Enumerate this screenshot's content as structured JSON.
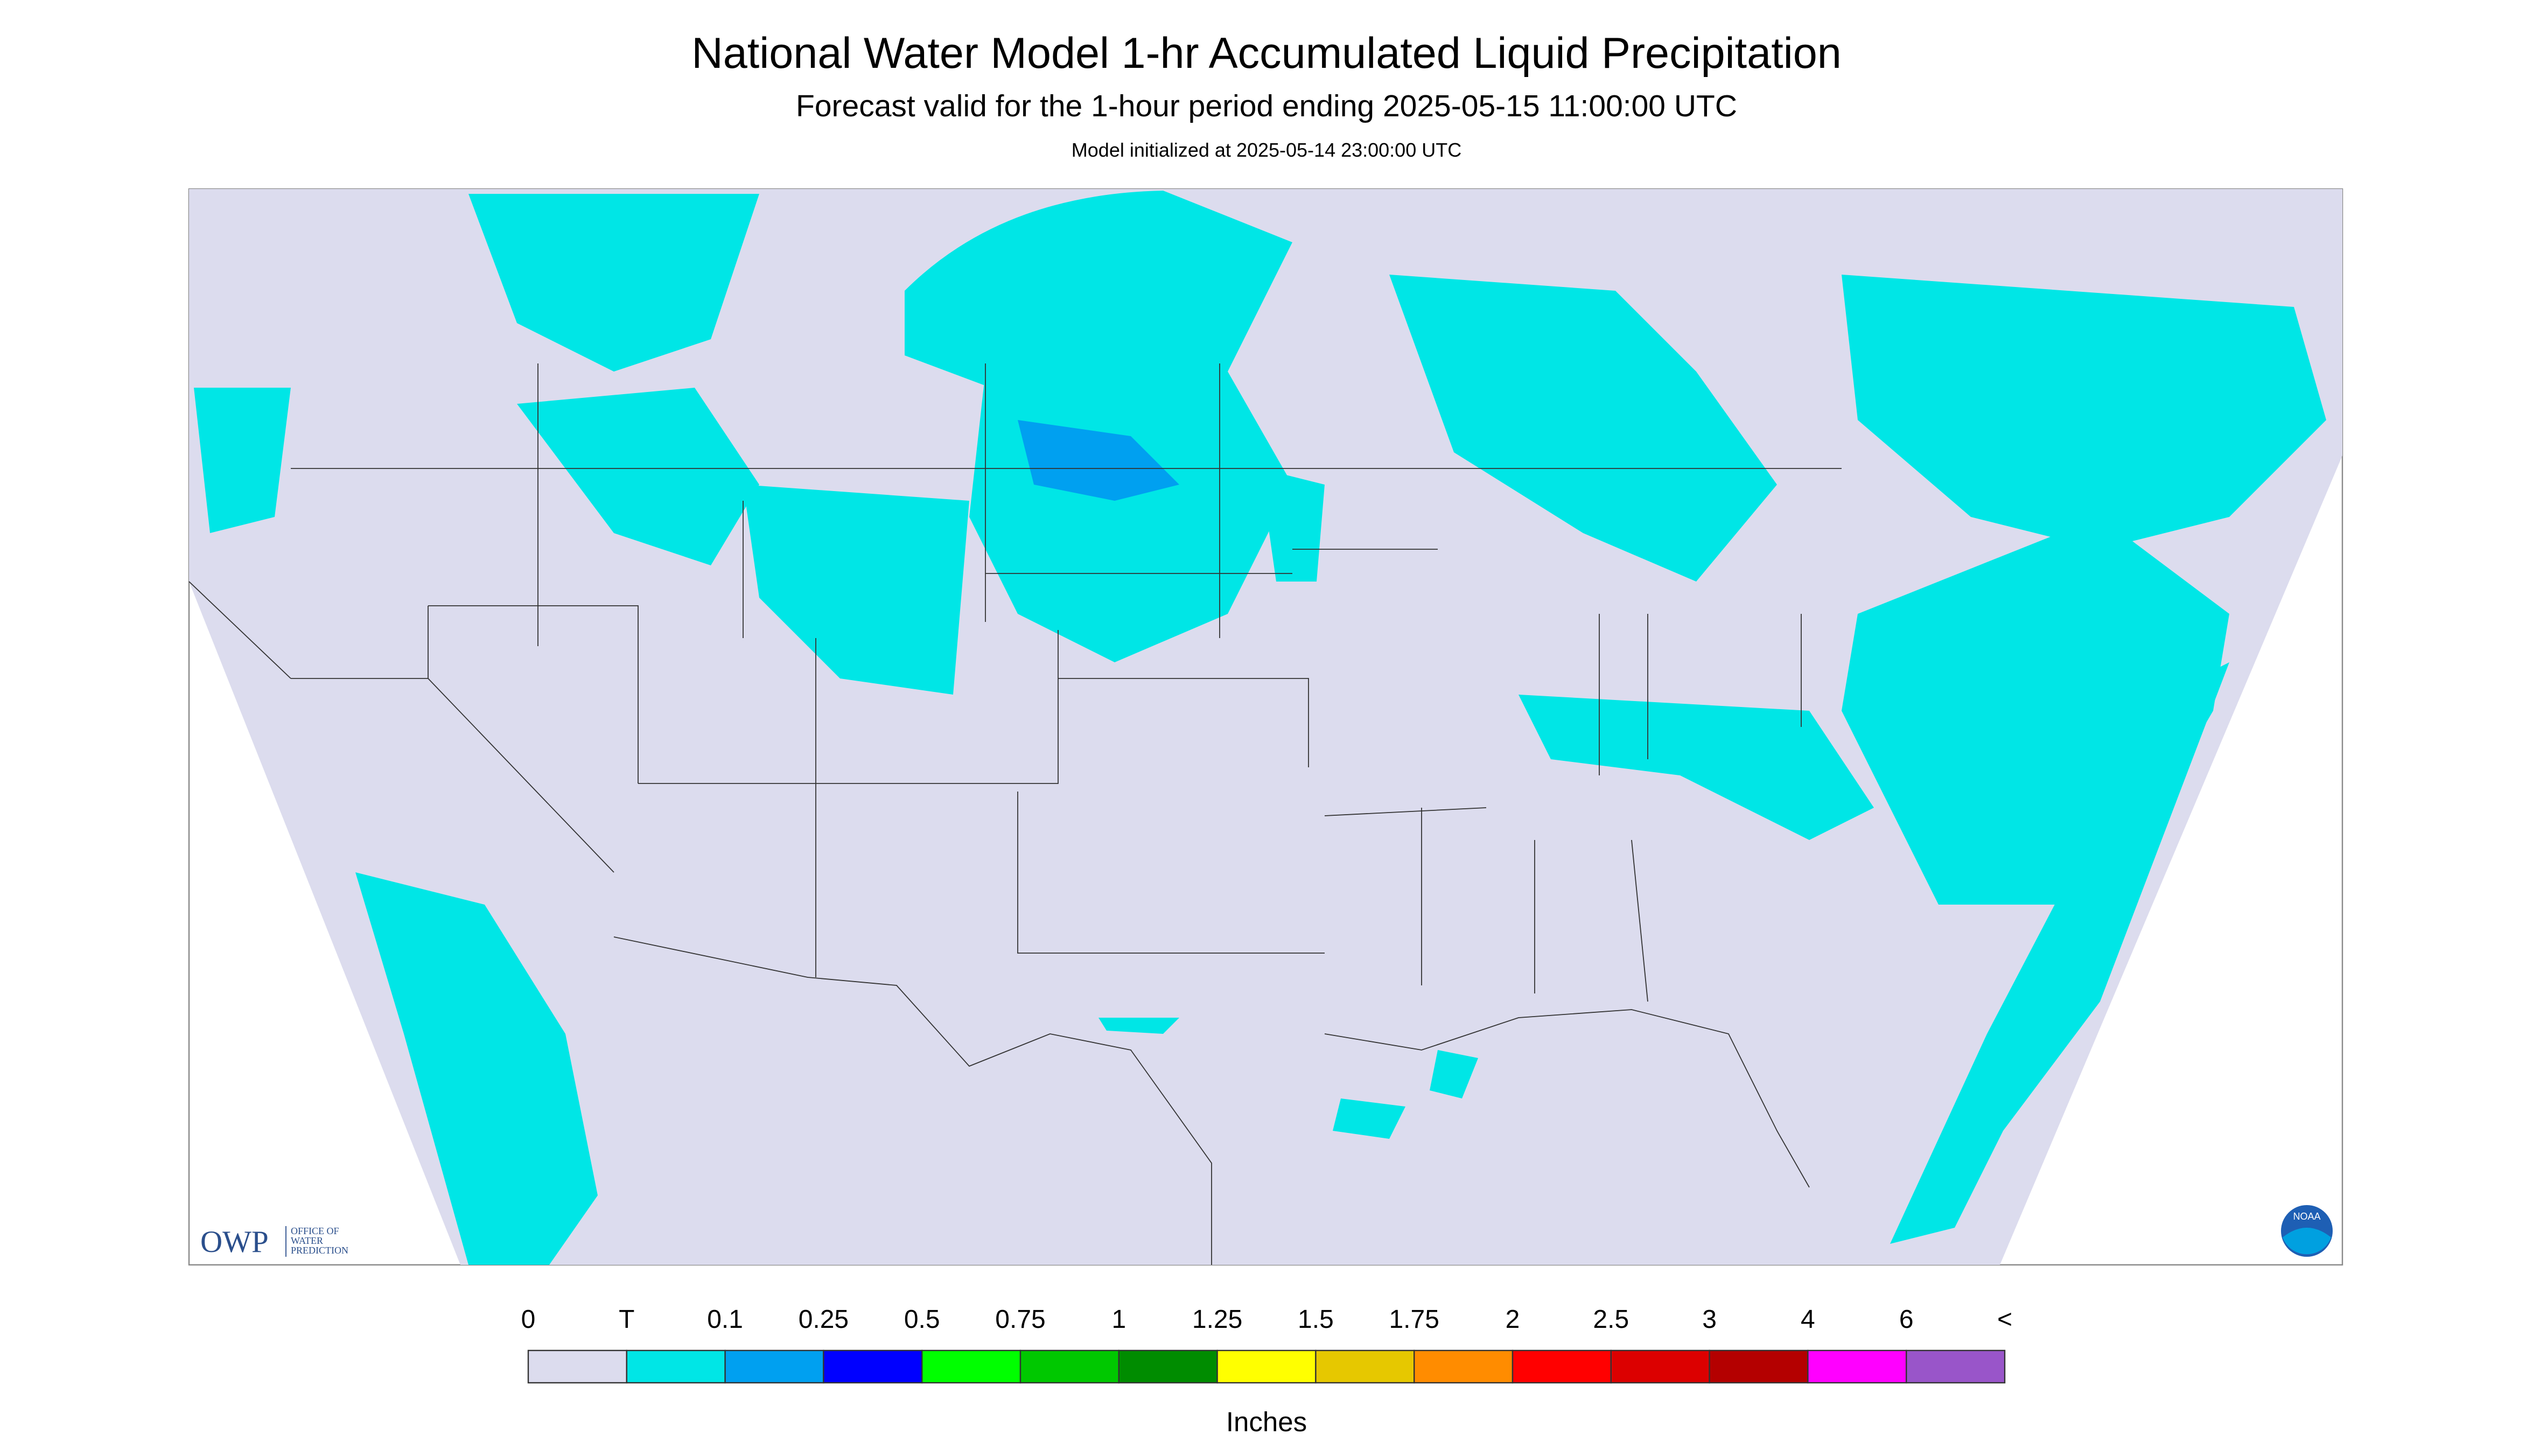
{
  "header": {
    "title": "National Water Model 1-hr Accumulated Liquid Precipitation",
    "subtitle": "Forecast valid for the 1-hour period ending 2025-05-15 11:00:00 UTC",
    "note": "Model initialized at 2025-05-14 23:00:00 UTC"
  },
  "logos": {
    "owp": "OWP",
    "owp_lines": [
      "OFFICE OF",
      "WATER",
      "PREDICTION"
    ],
    "noaa": "NOAA"
  },
  "legend": {
    "labels": [
      "0",
      "T",
      "0.1",
      "0.25",
      "0.5",
      "0.75",
      "1",
      "1.25",
      "1.5",
      "1.75",
      "2",
      "2.5",
      "3",
      "4",
      "6",
      "<"
    ],
    "colors": [
      "#dcdcee",
      "#00e6e6",
      "#00a0f0",
      "#0000ff",
      "#00ff00",
      "#00c800",
      "#008c00",
      "#ffff00",
      "#e6c800",
      "#ff8c00",
      "#ff0000",
      "#dc0000",
      "#b40000",
      "#ff00ff",
      "#9955c9"
    ],
    "unit": "Inches"
  }
}
